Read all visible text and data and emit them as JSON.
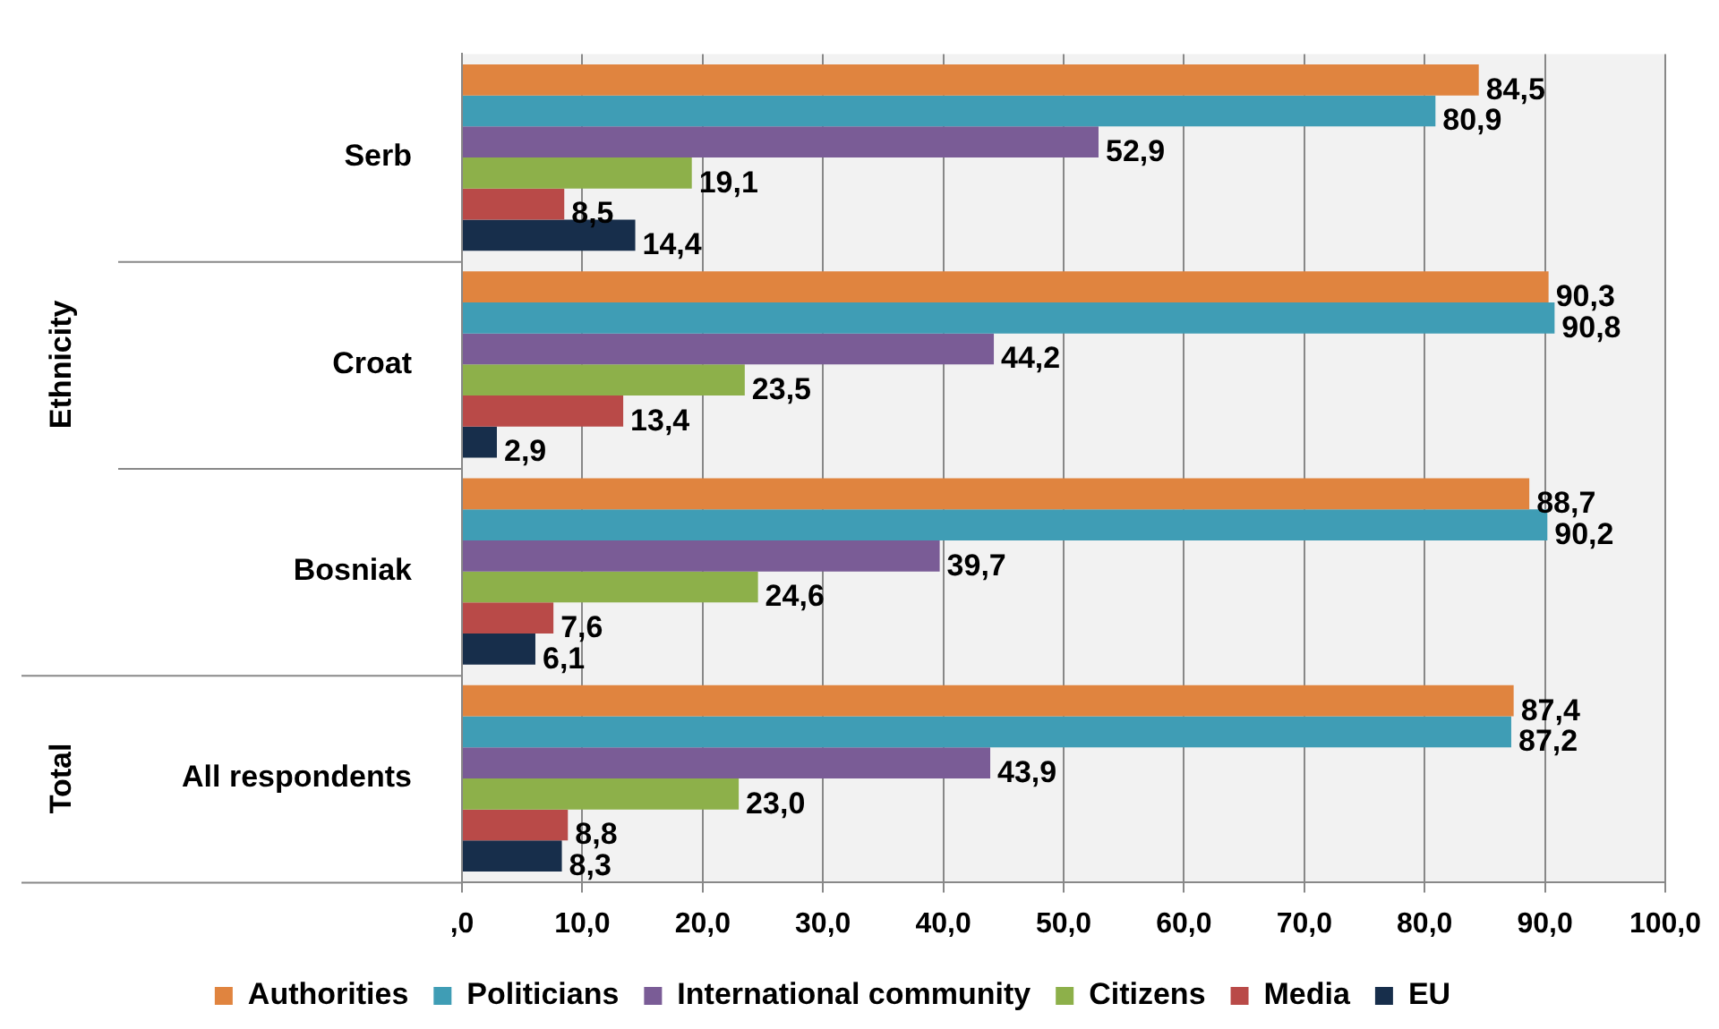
{
  "chart_data": {
    "type": "bar",
    "orientation": "horizontal",
    "categories": [
      "Serb",
      "Croat",
      "Bosniak",
      "All respondents"
    ],
    "series": [
      {
        "name": "Authorities",
        "color": "#e0843f",
        "values": [
          84.5,
          90.3,
          88.7,
          87.4
        ],
        "value_labels": [
          "84,5",
          "90,3",
          "88,7",
          "87,4"
        ]
      },
      {
        "name": "Politicians",
        "color": "#3f9db5",
        "values": [
          80.9,
          90.8,
          90.2,
          87.2
        ],
        "value_labels": [
          "80,9",
          "90,8",
          "90,2",
          "87,2"
        ]
      },
      {
        "name": "International community",
        "color": "#7a5c96",
        "values": [
          52.9,
          44.2,
          39.7,
          43.9
        ],
        "value_labels": [
          "52,9",
          "44,2",
          "39,7",
          "43,9"
        ]
      },
      {
        "name": "Citizens",
        "color": "#8db04a",
        "values": [
          19.1,
          23.5,
          24.6,
          23.0
        ],
        "value_labels": [
          "19,1",
          "23,5",
          "24,6",
          "23,0"
        ]
      },
      {
        "name": "Media",
        "color": "#b94a48",
        "values": [
          8.5,
          13.4,
          7.6,
          8.8
        ],
        "value_labels": [
          "8,5",
          "13,4",
          "7,6",
          "8,8"
        ]
      },
      {
        "name": "EU",
        "color": "#172e4b",
        "values": [
          14.4,
          2.9,
          6.1,
          8.3
        ],
        "value_labels": [
          "14,4",
          "2,9",
          "6,1",
          "8,3"
        ]
      }
    ],
    "annotations": [
      "Ethnicity",
      "Total"
    ],
    "xlim": [
      0,
      100
    ],
    "xticks": [
      {
        "value": 0,
        "label": ",0"
      },
      {
        "value": 10,
        "label": "10,0"
      },
      {
        "value": 20,
        "label": "20,0"
      },
      {
        "value": 30,
        "label": "30,0"
      },
      {
        "value": 40,
        "label": "40,0"
      },
      {
        "value": 50,
        "label": "50,0"
      },
      {
        "value": 60,
        "label": "60,0"
      },
      {
        "value": 70,
        "label": "70,0"
      },
      {
        "value": 80,
        "label": "80,0"
      },
      {
        "value": 90,
        "label": "90,0"
      },
      {
        "value": 100,
        "label": "100,0"
      }
    ],
    "grid": "x",
    "legend": "bottom"
  }
}
